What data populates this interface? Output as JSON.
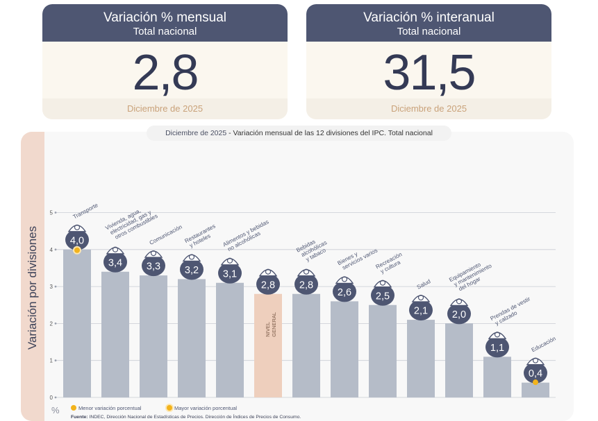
{
  "cards": [
    {
      "title": "Variación % mensual",
      "subtitle": "Total nacional",
      "value": "2,8",
      "period": "Diciembre de 2025"
    },
    {
      "title": "Variación % interanual",
      "subtitle": "Total nacional",
      "value": "31,5",
      "period": "Diciembre de 2025"
    }
  ],
  "chart_header": {
    "period": "Diciembre de 2025",
    "separator": " - ",
    "title": "Variación mensual de las 12 divisiones del IPC. Total nacional"
  },
  "colors": {
    "bar": "#b5bcc8",
    "nivel_general": "#eecfbd",
    "badge": "#4e5672",
    "accent": "#f2b31c"
  },
  "chart_data": {
    "type": "bar",
    "ylabel": "Variación por divisiones",
    "yunit": "%",
    "ylim": [
      0,
      5
    ],
    "yticks": [
      "0",
      "1",
      "2",
      "3",
      "4",
      "5"
    ],
    "grid": true,
    "bars": [
      {
        "category": "Transporte",
        "value": 4.0,
        "label": "4,0",
        "icon": "transport-icon",
        "marker": "max"
      },
      {
        "category": "Vivienda, agua, electricidad, gas y otros combustibles",
        "value": 3.4,
        "label": "3,4",
        "icon": "lightbulb-icon"
      },
      {
        "category": "Comunicación",
        "value": 3.3,
        "label": "3,3",
        "icon": "phone-icon"
      },
      {
        "category": "Restaurantes y hoteles",
        "value": 3.2,
        "label": "3,2",
        "icon": "cutlery-icon"
      },
      {
        "category": "Alimentos y bebidas no alcohólicas",
        "value": 3.1,
        "label": "3,1",
        "icon": "food-icon"
      },
      {
        "category": "NIVEL GENERAL",
        "value": 2.8,
        "label": "2,8",
        "icon": "basket-icon",
        "highlight": true
      },
      {
        "category": "Bebidas alcohólicas y tabaco",
        "value": 2.8,
        "label": "2,8",
        "icon": "wine-icon"
      },
      {
        "category": "Bienes y servicios varios",
        "value": 2.6,
        "label": "2,6",
        "icon": "comb-icon"
      },
      {
        "category": "Recreación y cultura",
        "value": 2.5,
        "label": "2,5",
        "icon": "beach-umbrella-icon"
      },
      {
        "category": "Salud",
        "value": 2.1,
        "label": "2,1",
        "icon": "health-cross-icon"
      },
      {
        "category": "Equipamiento y mantenimiento del hogar",
        "value": 2.0,
        "label": "2,0",
        "icon": "appliance-icon"
      },
      {
        "category": "Prendas de vestir y calzado",
        "value": 1.1,
        "label": "1,1",
        "icon": "tshirt-icon"
      },
      {
        "category": "Educación",
        "value": 0.4,
        "label": "0,4",
        "icon": "notebook-icon",
        "marker": "min"
      }
    ],
    "category_label_lines": [
      [
        "Transporte"
      ],
      [
        "Vivienda, agua,",
        "electricidad, gas y",
        "otros combustibles"
      ],
      [
        "Comunicación"
      ],
      [
        "Restaurantes",
        "y hoteles"
      ],
      [
        "Alimentos y bebidas",
        "no alcohólicas"
      ],
      [
        "NIVEL",
        "GENERAL"
      ],
      [
        "Bebidas",
        "alcohólicas",
        "y tabaco"
      ],
      [
        "Bienes y",
        "servicios varios"
      ],
      [
        "Recreación",
        "y cultura"
      ],
      [
        "Salud"
      ],
      [
        "Equipamiento",
        "y mantenimiento",
        "del hogar"
      ],
      [
        "Prendas de vestir",
        "y calzado"
      ],
      [
        "Educación"
      ]
    ]
  },
  "legend": {
    "min_label": "Menor variación porcentual",
    "max_label": "Mayor variación porcentual"
  },
  "source": {
    "label": "Fuente:",
    "text": " INDEC, Dirección Nacional de Estadísticas de Precios. Dirección de Índices de Precios de Consumo."
  }
}
